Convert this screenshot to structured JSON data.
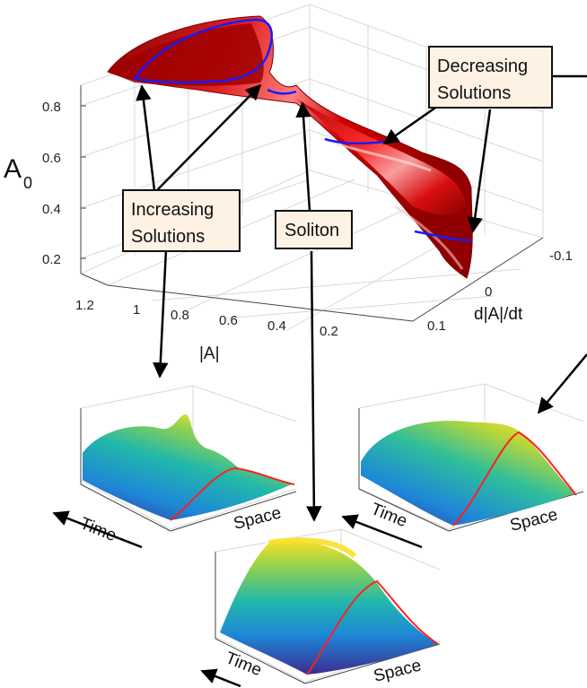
{
  "main_plot": {
    "z_label": "A",
    "z_label_sub": "0",
    "x_label": "|A|",
    "y_label": "d|A|/dt",
    "z_ticks": [
      "0.8",
      "0.6",
      "0.4",
      "0.2"
    ],
    "x_ticks": [
      "1.2",
      "1",
      "0.8",
      "0.6",
      "0.4",
      "0.2"
    ],
    "y_ticks": [
      "-0.1",
      "0",
      "0.1"
    ],
    "surface_color": "#cc0000",
    "curve_color": "#1a1aff"
  },
  "annotations": {
    "increasing": [
      "Increasing",
      "Solutions"
    ],
    "soliton": "Soliton",
    "decreasing": [
      "Decreasing",
      "Solutions"
    ],
    "box_fill": "#fdf2e4"
  },
  "subplots": [
    {
      "name": "increasing",
      "time_label": "Time",
      "space_label": "Space"
    },
    {
      "name": "decreasing",
      "time_label": "Time",
      "space_label": "Space"
    },
    {
      "name": "soliton",
      "time_label": "Time",
      "space_label": "Space"
    }
  ],
  "colormap": [
    "#3b2c8f",
    "#1e88d8",
    "#22b8aa",
    "#8fd14f",
    "#f5e12a"
  ]
}
